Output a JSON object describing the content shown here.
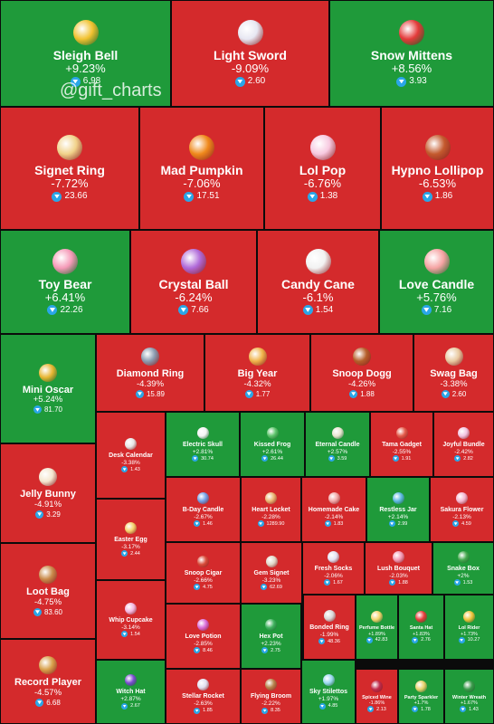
{
  "watermark": "@gift_charts",
  "colors": {
    "up": "#1f9a3a",
    "down": "#d42a2c",
    "background": "#0b0b0b",
    "ton": "#2aa6e8"
  },
  "chart_data": {
    "type": "treemap",
    "value_unit": "TON",
    "items": [
      {
        "name": "Sleigh Bell",
        "change": "+9.23%",
        "price": "6.98",
        "icon": "sleigh-bell-icon"
      },
      {
        "name": "Light Sword",
        "change": "-9.09%",
        "price": "2.60",
        "icon": "light-sword-icon"
      },
      {
        "name": "Snow Mittens",
        "change": "+8.56%",
        "price": "3.93",
        "icon": "snow-mittens-icon"
      },
      {
        "name": "Signet Ring",
        "change": "-7.72%",
        "price": "23.66",
        "icon": "signet-ring-icon"
      },
      {
        "name": "Mad Pumpkin",
        "change": "-7.06%",
        "price": "17.51",
        "icon": "mad-pumpkin-icon"
      },
      {
        "name": "Lol Pop",
        "change": "-6.76%",
        "price": "1.38",
        "icon": "lol-pop-icon"
      },
      {
        "name": "Hypno Lollipop",
        "change": "-6.53%",
        "price": "1.86",
        "icon": "hypno-lollipop-icon"
      },
      {
        "name": "Toy Bear",
        "change": "+6.41%",
        "price": "22.26",
        "icon": "toy-bear-icon"
      },
      {
        "name": "Crystal Ball",
        "change": "-6.24%",
        "price": "7.66",
        "icon": "crystal-ball-icon"
      },
      {
        "name": "Candy Cane",
        "change": "-6.1%",
        "price": "1.54",
        "icon": "candy-cane-icon"
      },
      {
        "name": "Love Candle",
        "change": "+5.76%",
        "price": "7.16",
        "icon": "love-candle-icon"
      },
      {
        "name": "Mini Oscar",
        "change": "+5.24%",
        "price": "81.70",
        "icon": "mini-oscar-icon"
      },
      {
        "name": "Diamond Ring",
        "change": "-4.39%",
        "price": "15.89",
        "icon": "diamond-ring-icon"
      },
      {
        "name": "Big Year",
        "change": "-4.32%",
        "price": "1.77",
        "icon": "big-year-icon"
      },
      {
        "name": "Snoop Dogg",
        "change": "-4.26%",
        "price": "1.88",
        "icon": "snoop-dogg-icon"
      },
      {
        "name": "Swag Bag",
        "change": "-3.38%",
        "price": "2.60",
        "icon": "swag-bag-icon"
      },
      {
        "name": "Desk Calendar",
        "change": "-3.38%",
        "price": "1.43",
        "icon": "desk-calendar-icon"
      },
      {
        "name": "Electric Skull",
        "change": "+2.81%",
        "price": "30.74",
        "icon": "electric-skull-icon"
      },
      {
        "name": "Kissed Frog",
        "change": "+2.61%",
        "price": "26.44",
        "icon": "kissed-frog-icon"
      },
      {
        "name": "Eternal Candle",
        "change": "+2.57%",
        "price": "3.59",
        "icon": "eternal-candle-icon"
      },
      {
        "name": "Tama Gadget",
        "change": "-2.55%",
        "price": "1.91",
        "icon": "tama-gadget-icon"
      },
      {
        "name": "Joyful Bundle",
        "change": "-2.42%",
        "price": "2.82",
        "icon": "joyful-bundle-icon"
      },
      {
        "name": "Jelly Bunny",
        "change": "-4.91%",
        "price": "3.29",
        "icon": "jelly-bunny-icon"
      },
      {
        "name": "B-Day Candle",
        "change": "-2.67%",
        "price": "1.46",
        "icon": "bday-candle-icon"
      },
      {
        "name": "Heart Locket",
        "change": "-2.28%",
        "price": "1289.90",
        "icon": "heart-locket-icon"
      },
      {
        "name": "Homemade Cake",
        "change": "-2.14%",
        "price": "1.83",
        "icon": "homemade-cake-icon"
      },
      {
        "name": "Restless Jar",
        "change": "+2.14%",
        "price": "2.99",
        "icon": "restless-jar-icon"
      },
      {
        "name": "Sakura Flower",
        "change": "-2.13%",
        "price": "4.59",
        "icon": "sakura-flower-icon"
      },
      {
        "name": "Easter Egg",
        "change": "-3.17%",
        "price": "2.44",
        "icon": "easter-egg-icon"
      },
      {
        "name": "Snoop Cigar",
        "change": "-2.66%",
        "price": "4.75",
        "icon": "snoop-cigar-icon"
      },
      {
        "name": "Gem Signet",
        "change": "-3.23%",
        "price": "62.69",
        "icon": "gem-signet-icon"
      },
      {
        "name": "Fresh Socks",
        "change": "-2.06%",
        "price": "1.67",
        "icon": "fresh-socks-icon"
      },
      {
        "name": "Lush Bouquet",
        "change": "-2.03%",
        "price": "1.88",
        "icon": "lush-bouquet-icon"
      },
      {
        "name": "Snake Box",
        "change": "+2%",
        "price": "1.53",
        "icon": "snake-box-icon"
      },
      {
        "name": "Loot Bag",
        "change": "-4.75%",
        "price": "83.60",
        "icon": "loot-bag-icon"
      },
      {
        "name": "Whip Cupcake",
        "change": "-3.14%",
        "price": "1.54",
        "icon": "whip-cupcake-icon"
      },
      {
        "name": "Love Potion",
        "change": "-2.85%",
        "price": "8.46",
        "icon": "love-potion-icon"
      },
      {
        "name": "Hex Pot",
        "change": "+2.23%",
        "price": "2.75",
        "icon": "hex-pot-icon"
      },
      {
        "name": "Bonded Ring",
        "change": "-1.99%",
        "price": "48.36",
        "icon": "bonded-ring-icon"
      },
      {
        "name": "Perfume Bottle",
        "change": "+1.89%",
        "price": "42.83",
        "icon": "perfume-bottle-icon"
      },
      {
        "name": "Santa Hat",
        "change": "+1.83%",
        "price": "2.76",
        "icon": "santa-hat-icon"
      },
      {
        "name": "Lol Rider",
        "change": "+1.73%",
        "price": "10.27",
        "icon": "lol-rider-icon"
      },
      {
        "name": "Record Player",
        "change": "-4.57%",
        "price": "6.68",
        "icon": "record-player-icon"
      },
      {
        "name": "Witch Hat",
        "change": "+2.87%",
        "price": "2.67",
        "icon": "witch-hat-icon"
      },
      {
        "name": "Stellar Rocket",
        "change": "-2.63%",
        "price": "1.85",
        "icon": "stellar-rocket-icon"
      },
      {
        "name": "Flying Broom",
        "change": "-2.22%",
        "price": "8.35",
        "icon": "flying-broom-icon"
      },
      {
        "name": "Sky Stilettos",
        "change": "+1.97%",
        "price": "4.85",
        "icon": "sky-stilettos-icon"
      },
      {
        "name": "Spiced Wine",
        "change": "-1.86%",
        "price": "2.13",
        "icon": "spiced-wine-icon"
      },
      {
        "name": "Party Sparkler",
        "change": "+1.7%",
        "price": "1.78",
        "icon": "party-sparkler-icon"
      },
      {
        "name": "Winter Wreath",
        "change": "+1.67%",
        "price": "1.43",
        "icon": "winter-wreath-icon"
      }
    ]
  }
}
